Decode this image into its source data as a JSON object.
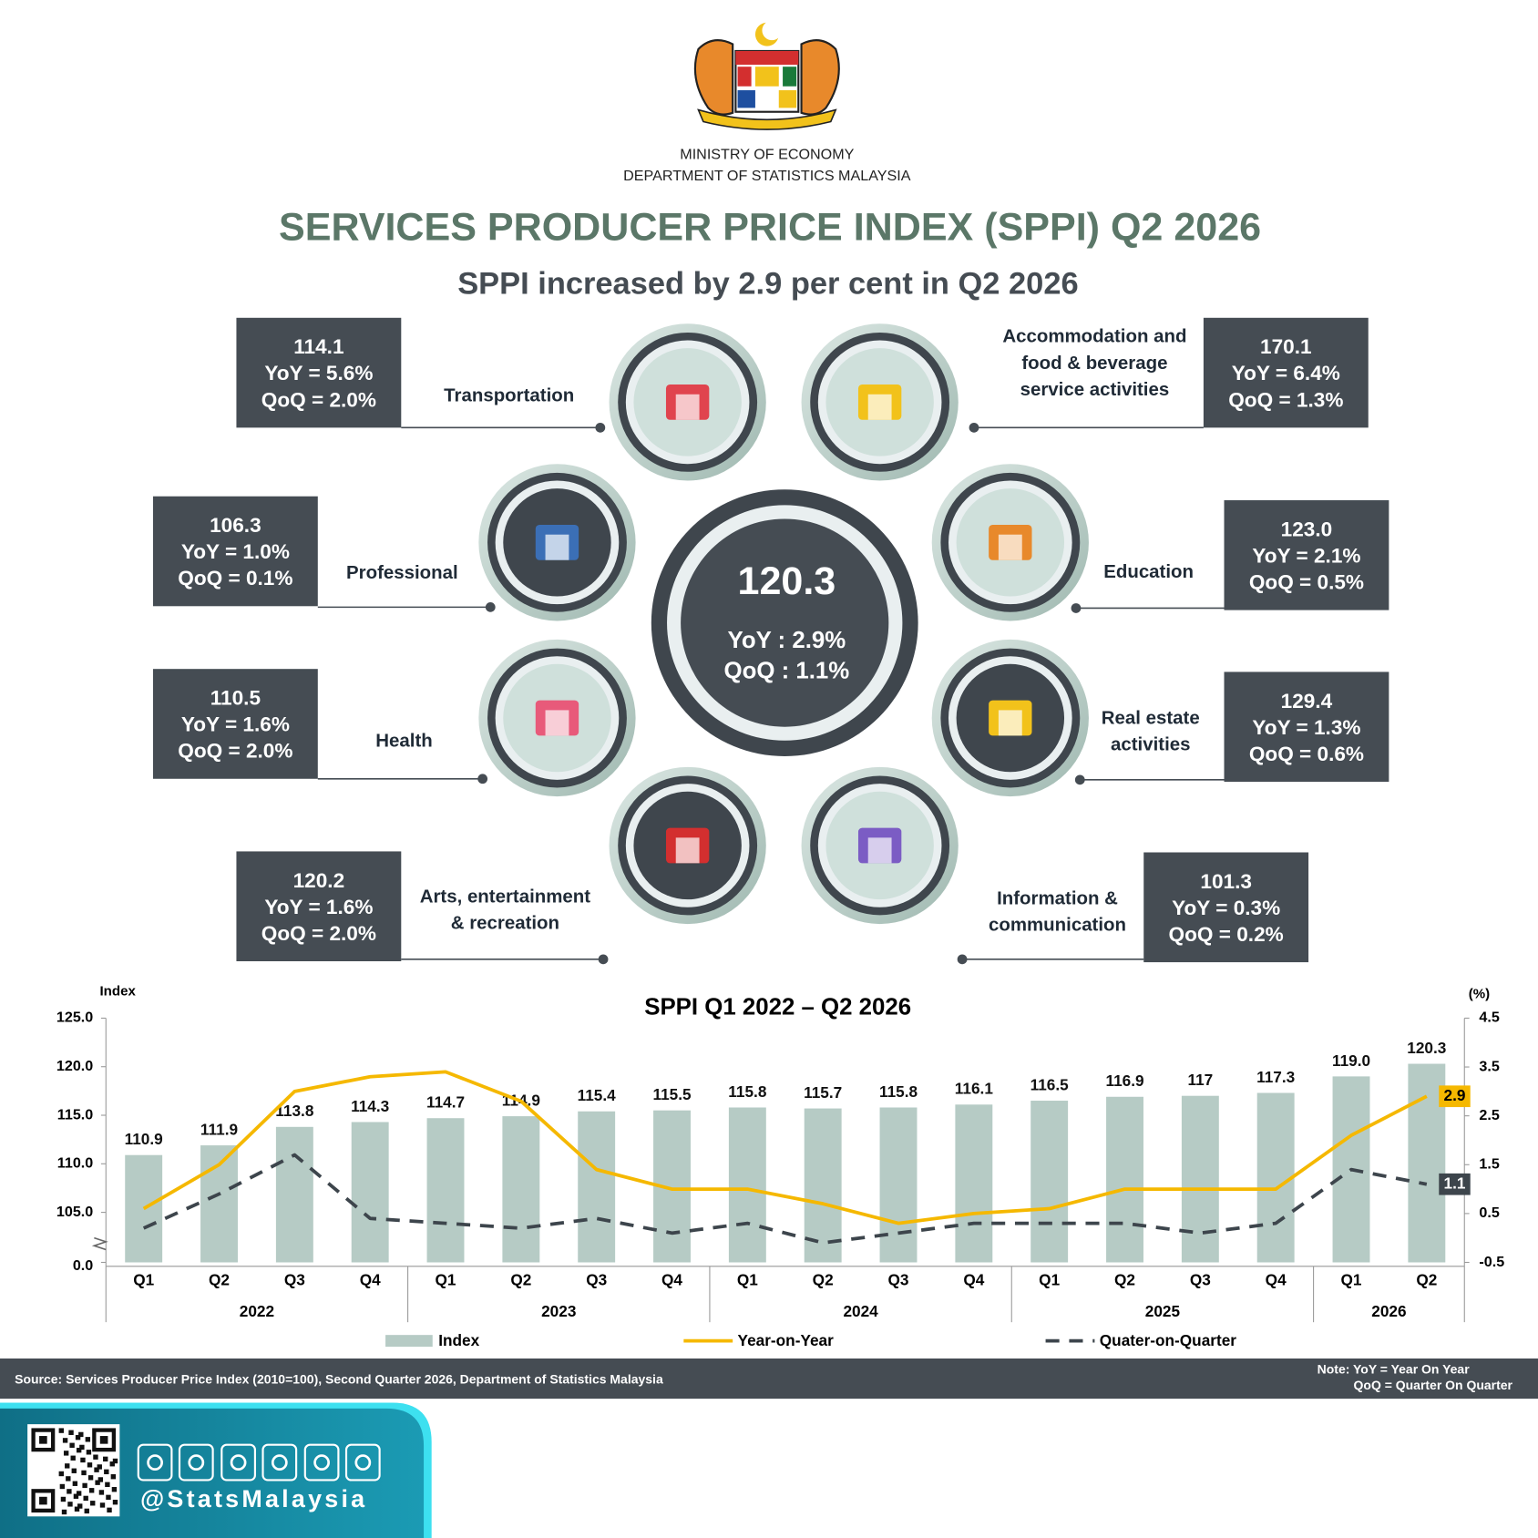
{
  "header": {
    "ministry": "MINISTRY OF ECONOMY",
    "department": "DEPARTMENT OF STATISTICS MALAYSIA",
    "title": "SERVICES PRODUCER PRICE INDEX (SPPI) Q2 2026",
    "subtitle": "SPPI increased by 2.9 per cent in Q2 2026"
  },
  "overall": {
    "index": "120.3",
    "yoy": "YoY : 2.9%",
    "qoq": "QoQ : 1.1%"
  },
  "sectors": [
    {
      "name": [
        "Transportation"
      ],
      "index": "114.1",
      "yoy": "YoY = 5.6%",
      "qoq": "QoQ = 2.0%"
    },
    {
      "name": [
        "Accommodation and",
        "food & beverage",
        "service activities"
      ],
      "index": "170.1",
      "yoy": "YoY = 6.4%",
      "qoq": "QoQ = 1.3%"
    },
    {
      "name": [
        "Professional"
      ],
      "index": "106.3",
      "yoy": "YoY = 1.0%",
      "qoq": "QoQ = 0.1%"
    },
    {
      "name": [
        "Education"
      ],
      "index": "123.0",
      "yoy": "YoY = 2.1%",
      "qoq": "QoQ = 0.5%"
    },
    {
      "name": [
        "Health"
      ],
      "index": "110.5",
      "yoy": "YoY = 1.6%",
      "qoq": "QoQ = 2.0%"
    },
    {
      "name": [
        "Real estate",
        "activities"
      ],
      "index": "129.4",
      "yoy": "YoY = 1.3%",
      "qoq": "QoQ = 0.6%"
    },
    {
      "name": [
        "Arts, entertainment",
        "& recreation"
      ],
      "index": "120.2",
      "yoy": "YoY = 1.6%",
      "qoq": "QoQ = 2.0%"
    },
    {
      "name": [
        "Information &",
        "communication"
      ],
      "index": "101.3",
      "yoy": "YoY = 0.3%",
      "qoq": "QoQ = 0.2%"
    }
  ],
  "chart_data": {
    "type": "bar",
    "title": "SPPI Q1 2022 – Q2 2026",
    "y_label": "Index",
    "y2_label": "(%)",
    "categories": [
      "Q1",
      "Q2",
      "Q3",
      "Q4",
      "Q1",
      "Q2",
      "Q3",
      "Q4",
      "Q1",
      "Q2",
      "Q3",
      "Q4",
      "Q1",
      "Q2",
      "Q3",
      "Q4",
      "Q1",
      "Q2"
    ],
    "groups": [
      {
        "label": "2022",
        "count": 4
      },
      {
        "label": "2023",
        "count": 4
      },
      {
        "label": "2024",
        "count": 4
      },
      {
        "label": "2025",
        "count": 4
      },
      {
        "label": "2026",
        "count": 2
      }
    ],
    "ylim": [
      0,
      125
    ],
    "ybreak": [
      0,
      105
    ],
    "yticks": [
      {
        "value": 0,
        "label": "0.0"
      },
      {
        "value": 105,
        "label": "105.0"
      },
      {
        "value": 110,
        "label": "110.0"
      },
      {
        "value": 115,
        "label": "115.0"
      },
      {
        "value": 120,
        "label": "120.0"
      },
      {
        "value": 125,
        "label": "125.0"
      }
    ],
    "y2lim": [
      -0.5,
      4.5
    ],
    "y2ticks": [
      -0.5,
      0.5,
      1.5,
      2.5,
      3.5,
      4.5
    ],
    "series": [
      {
        "name": "Index",
        "type": "bar",
        "color": "#b6cbc5",
        "values": [
          110.9,
          111.9,
          113.8,
          114.3,
          114.7,
          114.9,
          115.4,
          115.5,
          115.8,
          115.7,
          115.8,
          116.1,
          116.5,
          116.9,
          117,
          117.3,
          119,
          120.3
        ],
        "value_labels": [
          "110.9",
          "111.9",
          "113.8",
          "114.3",
          "114.7",
          "114.9",
          "115.4",
          "115.5",
          "115.8",
          "115.7",
          "115.8",
          "116.1",
          "116.5",
          "116.9",
          "117",
          "117.3",
          "119.0",
          "120.3"
        ]
      },
      {
        "name": "Year-on-Year",
        "type": "line",
        "axis": "y2",
        "color": "#f5b800",
        "end_label": true,
        "values": [
          0.6,
          1.5,
          3.0,
          3.3,
          3.4,
          2.8,
          1.4,
          1.0,
          1.0,
          0.7,
          0.3,
          0.5,
          0.6,
          1.0,
          1.0,
          1.0,
          2.1,
          2.9
        ]
      },
      {
        "name": "Quater-on-Quarter",
        "type": "line",
        "axis": "y2",
        "color": "#3d454c",
        "dashed": true,
        "end_label": true,
        "values": [
          0.2,
          0.9,
          1.7,
          0.4,
          0.3,
          0.2,
          0.4,
          0.1,
          0.3,
          -0.1,
          0.1,
          0.3,
          0.3,
          0.3,
          0.1,
          0.3,
          1.4,
          1.1
        ]
      }
    ]
  },
  "footer": {
    "source": "Source: Services Producer Price Index (2010=100), Second Quarter 2026, Department of Statistics Malaysia",
    "note": [
      "Note: YoY = Year On Year",
      "QoQ = Quarter On Quarter"
    ],
    "handle": "@StatsMalaysia"
  }
}
